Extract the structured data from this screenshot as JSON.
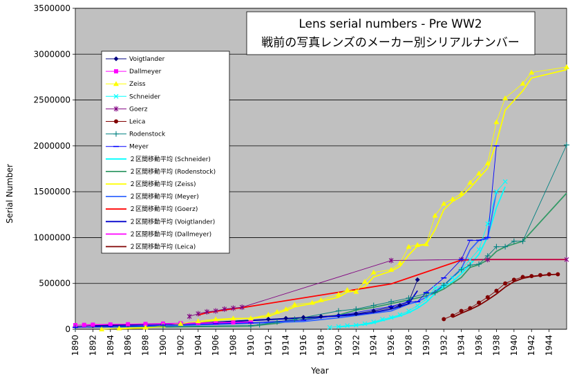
{
  "chart_data": {
    "type": "line",
    "title": "Lens serial numbers - Pre WW2",
    "subtitle": "戦前の写真レンズのメーカー別シリアルナンバー",
    "xlabel": "Year",
    "ylabel": "Serial Number",
    "xlim": [
      1890,
      1946
    ],
    "ylim": [
      0,
      3500000
    ],
    "x_ticks": [
      "1890",
      "1892",
      "1894",
      "1896",
      "1898",
      "1900",
      "1902",
      "1904",
      "1906",
      "1908",
      "1910",
      "1912",
      "1914",
      "1916",
      "1918",
      "1920",
      "1922",
      "1924",
      "1926",
      "1928",
      "1930",
      "1932",
      "1934",
      "1936",
      "1938",
      "1940",
      "1942",
      "1944"
    ],
    "y_ticks": [
      "0",
      "500000",
      "1000000",
      "1500000",
      "2000000",
      "2500000",
      "3000000",
      "3500000"
    ],
    "grid": "horizontal",
    "background": "#c0c0c0",
    "legend_position": "upper-left",
    "series": [
      {
        "name": "Voigtlander",
        "color": "#000080",
        "marker": "diamond",
        "points": [
          [
            1890,
            30000
          ],
          [
            1892,
            40000
          ],
          [
            1894,
            45000
          ],
          [
            1896,
            50000
          ],
          [
            1898,
            55000
          ],
          [
            1900,
            60000
          ],
          [
            1902,
            65000
          ],
          [
            1904,
            70000
          ],
          [
            1906,
            80000
          ],
          [
            1908,
            90000
          ],
          [
            1910,
            100000
          ],
          [
            1912,
            110000
          ],
          [
            1914,
            120000
          ],
          [
            1916,
            130000
          ],
          [
            1918,
            140000
          ],
          [
            1920,
            150000
          ],
          [
            1922,
            170000
          ],
          [
            1924,
            200000
          ],
          [
            1926,
            240000
          ],
          [
            1927,
            260000
          ],
          [
            1928,
            300000
          ],
          [
            1929,
            540000
          ]
        ]
      },
      {
        "name": "Dallmeyer",
        "color": "#ff00ff",
        "marker": "square",
        "points": [
          [
            1890,
            45000
          ],
          [
            1891,
            48000
          ],
          [
            1892,
            50000
          ],
          [
            1894,
            52000
          ],
          [
            1896,
            55000
          ],
          [
            1898,
            58000
          ],
          [
            1900,
            62000
          ],
          [
            1902,
            65000
          ],
          [
            1904,
            70000
          ],
          [
            1906,
            72000
          ],
          [
            1908,
            75000
          ],
          [
            1910,
            80000
          ]
        ]
      },
      {
        "name": "Zeiss",
        "color": "#ffff00",
        "marker": "triangle",
        "points": [
          [
            1893,
            0
          ],
          [
            1895,
            10000
          ],
          [
            1898,
            20000
          ],
          [
            1900,
            40000
          ],
          [
            1902,
            60000
          ],
          [
            1904,
            90000
          ],
          [
            1906,
            110000
          ],
          [
            1908,
            120000
          ],
          [
            1910,
            120000
          ],
          [
            1912,
            160000
          ],
          [
            1913,
            190000
          ],
          [
            1914,
            220000
          ],
          [
            1915,
            270000
          ],
          [
            1917,
            290000
          ],
          [
            1918,
            320000
          ],
          [
            1920,
            380000
          ],
          [
            1921,
            430000
          ],
          [
            1922,
            410000
          ],
          [
            1923,
            520000
          ],
          [
            1924,
            620000
          ],
          [
            1926,
            650000
          ],
          [
            1927,
            720000
          ],
          [
            1928,
            900000
          ],
          [
            1929,
            920000
          ],
          [
            1930,
            930000
          ],
          [
            1931,
            1240000
          ],
          [
            1932,
            1370000
          ],
          [
            1933,
            1420000
          ],
          [
            1934,
            1480000
          ],
          [
            1935,
            1600000
          ],
          [
            1936,
            1700000
          ],
          [
            1937,
            1810000
          ],
          [
            1938,
            2260000
          ],
          [
            1939,
            2520000
          ],
          [
            1941,
            2680000
          ],
          [
            1942,
            2800000
          ],
          [
            1946,
            2860000
          ]
        ]
      },
      {
        "name": "Schneider",
        "color": "#00ffff",
        "marker": "x",
        "points": [
          [
            1919,
            20000
          ],
          [
            1920,
            30000
          ],
          [
            1921,
            40000
          ],
          [
            1922,
            45000
          ],
          [
            1923,
            60000
          ],
          [
            1924,
            80000
          ],
          [
            1925,
            110000
          ],
          [
            1926,
            130000
          ],
          [
            1927,
            160000
          ],
          [
            1928,
            200000
          ],
          [
            1929,
            260000
          ],
          [
            1930,
            330000
          ],
          [
            1931,
            450000
          ],
          [
            1932,
            480000
          ],
          [
            1933,
            560000
          ],
          [
            1934,
            650000
          ],
          [
            1935,
            760000
          ],
          [
            1936,
            870000
          ],
          [
            1937,
            1150000
          ],
          [
            1938,
            1500000
          ],
          [
            1939,
            1610000
          ]
        ]
      },
      {
        "name": "Goerz",
        "color": "#800080",
        "marker": "asterisk",
        "points": [
          [
            1903,
            140000
          ],
          [
            1904,
            170000
          ],
          [
            1905,
            190000
          ],
          [
            1906,
            200000
          ],
          [
            1907,
            220000
          ],
          [
            1908,
            230000
          ],
          [
            1909,
            240000
          ],
          [
            1926,
            750000
          ],
          [
            1934,
            760000
          ],
          [
            1937,
            760000
          ],
          [
            1946,
            760000
          ]
        ]
      },
      {
        "name": "Leica",
        "color": "#800000",
        "marker": "circle",
        "points": [
          [
            1932,
            110000
          ],
          [
            1933,
            150000
          ],
          [
            1934,
            200000
          ],
          [
            1935,
            230000
          ],
          [
            1936,
            290000
          ],
          [
            1937,
            350000
          ],
          [
            1938,
            420000
          ],
          [
            1939,
            500000
          ],
          [
            1940,
            540000
          ],
          [
            1941,
            570000
          ],
          [
            1942,
            580000
          ],
          [
            1943,
            590000
          ],
          [
            1944,
            600000
          ],
          [
            1945,
            600000
          ]
        ]
      },
      {
        "name": "Rodenstock",
        "color": "#008080",
        "marker": "plus",
        "points": [
          [
            1890,
            20000
          ],
          [
            1900,
            30000
          ],
          [
            1910,
            40000
          ],
          [
            1911,
            50000
          ],
          [
            1913,
            80000
          ],
          [
            1915,
            110000
          ],
          [
            1920,
            200000
          ],
          [
            1922,
            220000
          ],
          [
            1924,
            260000
          ],
          [
            1926,
            300000
          ],
          [
            1928,
            340000
          ],
          [
            1930,
            390000
          ],
          [
            1931,
            400000
          ],
          [
            1932,
            480000
          ],
          [
            1934,
            650000
          ],
          [
            1935,
            700000
          ],
          [
            1936,
            710000
          ],
          [
            1937,
            800000
          ],
          [
            1938,
            900000
          ],
          [
            1939,
            900000
          ],
          [
            1940,
            960000
          ],
          [
            1941,
            960000
          ],
          [
            1946,
            2010000
          ]
        ]
      },
      {
        "name": "Meyer",
        "color": "#0000ff",
        "marker": "dash",
        "points": [
          [
            1890,
            20000
          ],
          [
            1894,
            30000
          ],
          [
            1900,
            45000
          ],
          [
            1906,
            60000
          ],
          [
            1910,
            70000
          ],
          [
            1916,
            100000
          ],
          [
            1920,
            150000
          ],
          [
            1926,
            250000
          ],
          [
            1928,
            300000
          ],
          [
            1929,
            300000
          ],
          [
            1930,
            400000
          ],
          [
            1932,
            560000
          ],
          [
            1934,
            760000
          ],
          [
            1935,
            970000
          ],
          [
            1936,
            970000
          ],
          [
            1937,
            1000000
          ],
          [
            1938,
            2000000
          ]
        ]
      },
      {
        "name": "２区間移動平均 (Schneider)",
        "color": "#00ffff",
        "marker": "none",
        "moving_average_of": "Schneider"
      },
      {
        "name": "２区間移動平均 (Rodenstock)",
        "color": "#339966",
        "marker": "none",
        "moving_average_of": "Rodenstock"
      },
      {
        "name": "２区間移動平均 (Zeiss)",
        "color": "#ffff00",
        "marker": "none",
        "moving_average_of": "Zeiss"
      },
      {
        "name": "２区間移動平均 (Meyer)",
        "color": "#3366ff",
        "marker": "none",
        "moving_average_of": "Meyer"
      },
      {
        "name": "２区間移動平均 (Goerz)",
        "color": "#ff0000",
        "marker": "none",
        "moving_average_of": "Goerz"
      },
      {
        "name": "２区間移動平均 (Voigtlander)",
        "color": "#0000cc",
        "marker": "none",
        "moving_average_of": "Voigtlander"
      },
      {
        "name": "２区間移動平均 (Dallmeyer)",
        "color": "#ff00ff",
        "marker": "none",
        "moving_average_of": "Dallmeyer"
      },
      {
        "name": "２区間移動平均 (Leica)",
        "color": "#800000",
        "marker": "none",
        "moving_average_of": "Leica"
      }
    ]
  }
}
